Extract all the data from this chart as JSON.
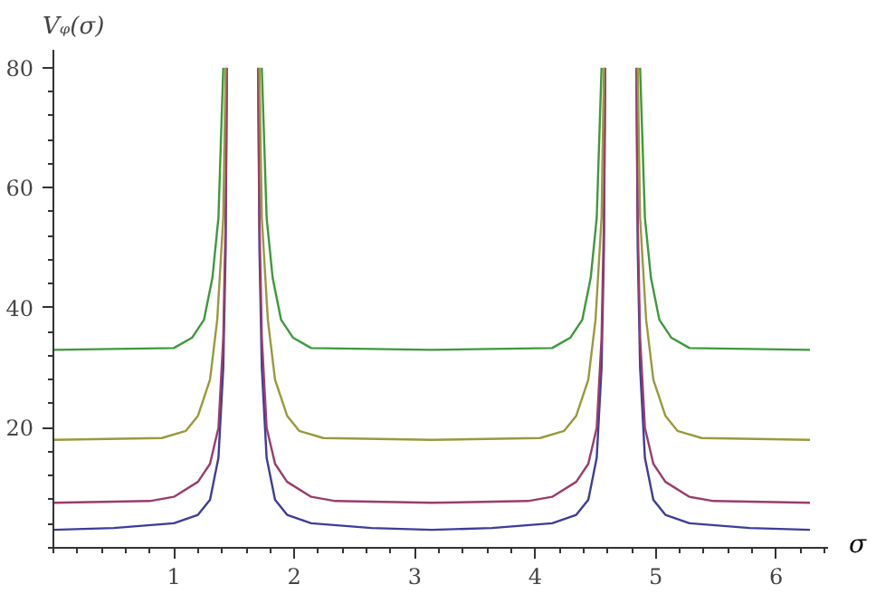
{
  "chart_data": {
    "type": "line",
    "xlabel": "σ",
    "ylabel": "Vᵩ(σ)",
    "xlim": [
      0,
      6.43
    ],
    "ylim": [
      0,
      83
    ],
    "xticks": [
      1,
      2,
      3,
      4,
      5,
      6
    ],
    "yticks": [
      20,
      40,
      60,
      80
    ],
    "grid": false,
    "line_style": "solid",
    "marker": "none",
    "series": [
      {
        "color": "#3d3d99",
        "x": [
          0,
          0.5,
          1.0,
          1.2,
          1.3,
          1.37,
          1.41,
          1.43,
          1.44,
          null,
          1.7,
          1.71,
          1.73,
          1.77,
          1.84,
          1.94,
          2.14,
          2.64,
          3.14,
          3.64,
          4.14,
          4.34,
          4.44,
          4.51,
          4.55,
          4.57,
          4.58,
          null,
          4.84,
          4.85,
          4.87,
          4.91,
          4.98,
          5.08,
          5.28,
          5.78,
          6.28
        ],
        "values": [
          3,
          3.3,
          4.1,
          5.5,
          8,
          15,
          30,
          50,
          80,
          null,
          80,
          50,
          30,
          15,
          8,
          5.5,
          4.1,
          3.3,
          3,
          3.3,
          4.1,
          5.5,
          8,
          15,
          30,
          50,
          80,
          null,
          80,
          50,
          30,
          15,
          8,
          5.5,
          4.1,
          3.3,
          3
        ]
      },
      {
        "color": "#993d6b",
        "x": [
          0,
          0.8,
          1.0,
          1.2,
          1.3,
          1.37,
          1.41,
          1.43,
          1.44,
          null,
          1.7,
          1.71,
          1.73,
          1.77,
          1.84,
          1.94,
          2.14,
          2.34,
          3.14,
          3.94,
          4.14,
          4.34,
          4.44,
          4.51,
          4.55,
          4.57,
          4.58,
          null,
          4.84,
          4.85,
          4.87,
          4.91,
          4.98,
          5.08,
          5.28,
          5.48,
          6.28
        ],
        "values": [
          7.5,
          7.8,
          8.5,
          11,
          14,
          20,
          35,
          55,
          80,
          null,
          80,
          55,
          35,
          20,
          14,
          11,
          8.5,
          7.8,
          7.5,
          7.8,
          8.5,
          11,
          14,
          20,
          35,
          55,
          80,
          null,
          80,
          55,
          35,
          20,
          14,
          11,
          8.5,
          7.8,
          7.5
        ]
      },
      {
        "color": "#99993d",
        "x": [
          0,
          0.9,
          1.1,
          1.2,
          1.3,
          1.36,
          1.41,
          1.43,
          null,
          1.71,
          1.73,
          1.78,
          1.84,
          1.94,
          2.04,
          2.24,
          3.14,
          4.04,
          4.24,
          4.34,
          4.44,
          4.5,
          4.55,
          4.57,
          null,
          4.85,
          4.87,
          4.92,
          4.98,
          5.08,
          5.18,
          5.38,
          6.28
        ],
        "values": [
          18,
          18.3,
          19.5,
          22,
          28,
          38,
          55,
          80,
          null,
          80,
          55,
          38,
          28,
          22,
          19.5,
          18.3,
          18,
          18.3,
          19.5,
          22,
          28,
          38,
          55,
          80,
          null,
          80,
          55,
          38,
          28,
          22,
          19.5,
          18.3,
          18
        ]
      },
      {
        "color": "#3d993d",
        "x": [
          0,
          1.0,
          1.15,
          1.25,
          1.32,
          1.37,
          1.41,
          null,
          1.73,
          1.77,
          1.82,
          1.89,
          1.99,
          2.14,
          3.14,
          4.14,
          4.29,
          4.39,
          4.46,
          4.51,
          4.55,
          null,
          4.87,
          4.91,
          4.96,
          5.03,
          5.13,
          5.28,
          6.28
        ],
        "values": [
          33,
          33.3,
          35,
          38,
          45,
          55,
          80,
          null,
          80,
          55,
          45,
          38,
          35,
          33.3,
          33,
          33.3,
          35,
          38,
          45,
          55,
          80,
          null,
          80,
          55,
          45,
          38,
          35,
          33.3,
          33
        ]
      }
    ]
  }
}
